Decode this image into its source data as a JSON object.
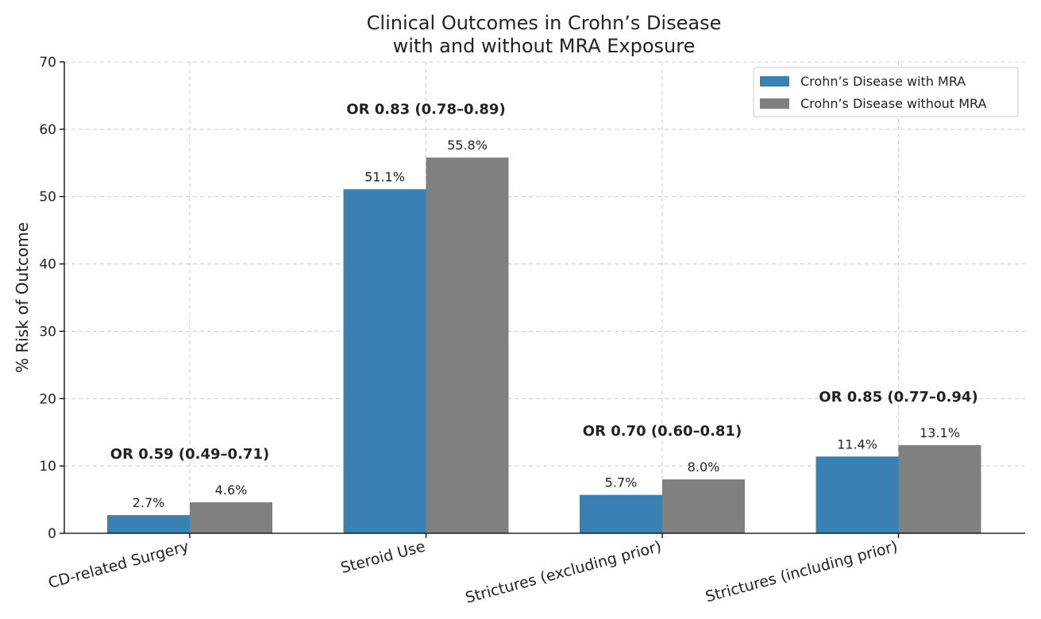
{
  "chart_data": {
    "type": "bar",
    "title": [
      "Clinical Outcomes in Crohn’s Disease",
      "with and without MRA Exposure"
    ],
    "xlabel": "",
    "ylabel": "% Risk of Outcome",
    "ylim": [
      0,
      70
    ],
    "yticks": [
      0,
      10,
      20,
      30,
      40,
      50,
      60,
      70
    ],
    "grid": true,
    "legend_position": "top-right",
    "categories": [
      "CD-related Surgery",
      "Steroid Use",
      "Strictures (excluding prior)",
      "Strictures (including prior)"
    ],
    "series": [
      {
        "name": "Crohn’s Disease with MRA",
        "color": "#3a81b3",
        "values": [
          2.7,
          51.1,
          5.7,
          11.4
        ],
        "labels": [
          "2.7%",
          "51.1%",
          "5.7%",
          "11.4%"
        ]
      },
      {
        "name": "Crohn’s Disease without MRA",
        "color": "#808080",
        "values": [
          4.6,
          55.8,
          8.0,
          13.1
        ],
        "labels": [
          "4.6%",
          "55.8%",
          "8.0%",
          "13.1%"
        ]
      }
    ],
    "annotations": [
      "OR 0.59 (0.49–0.71)",
      "OR 0.83 (0.78–0.89)",
      "OR 0.70 (0.60–0.81)",
      "OR 0.85 (0.77–0.94)"
    ]
  }
}
